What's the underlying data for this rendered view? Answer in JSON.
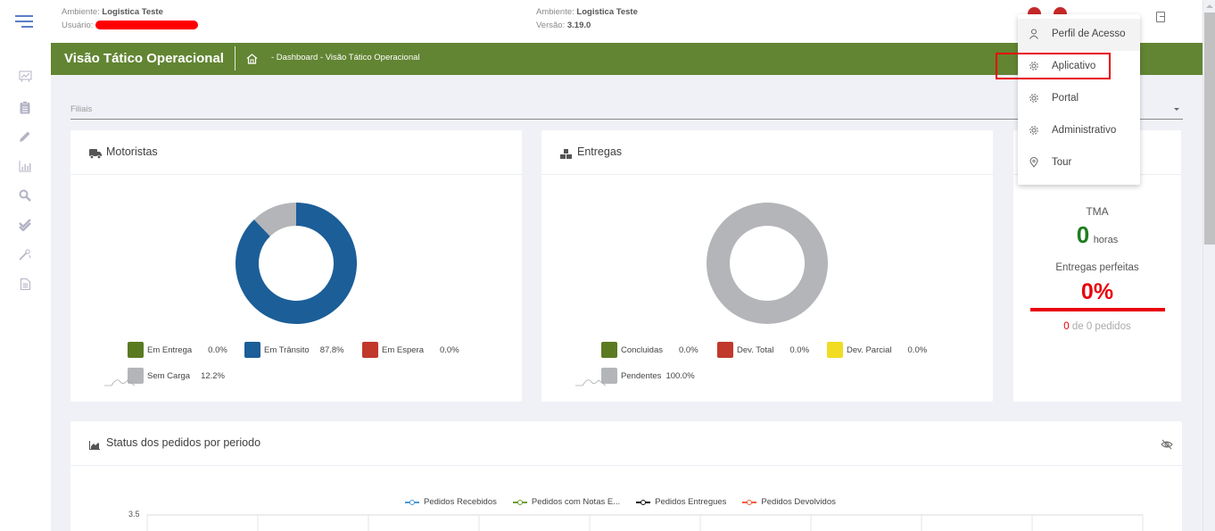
{
  "header": {
    "left": {
      "env_label": "Ambiente:",
      "env_value": "Logistica Teste",
      "user_label": "Usuário: r"
    },
    "mid": {
      "env_label": "Ambiente:",
      "env_value": "Logistica Teste",
      "version_label": "Versão:",
      "version_value": "3.19.0"
    }
  },
  "sidebar": {
    "items": [
      {
        "icon": "presentation-chart-icon"
      },
      {
        "icon": "clipboard-icon"
      },
      {
        "icon": "pencil-icon"
      },
      {
        "icon": "bar-chart-icon"
      },
      {
        "icon": "search-icon"
      },
      {
        "icon": "double-check-icon"
      },
      {
        "icon": "magic-wand-icon"
      },
      {
        "icon": "document-icon"
      }
    ]
  },
  "titlebar": {
    "title": "Visão Tático Operacional",
    "breadcrumb": " - Dashboard - Visão Tático Operacional"
  },
  "filter": {
    "label": "Filiais"
  },
  "motoristas": {
    "title": "Motoristas",
    "chart_data": {
      "type": "pie",
      "categories": [
        "Em Entrega",
        "Em Trânsito",
        "Em Espera",
        "Sem Carga"
      ],
      "values": [
        0.0,
        87.8,
        0.0,
        12.2
      ],
      "labels": [
        "0.0%",
        "87.8%",
        "0.0%",
        "12.2%"
      ],
      "colors": [
        "#5a7a22",
        "#1b5e98",
        "#c0392b",
        "#b4b5b8"
      ]
    }
  },
  "entregas": {
    "title": "Entregas",
    "chart_data": {
      "type": "pie",
      "categories": [
        "Concluidas",
        "Dev. Total",
        "Dev. Parcial",
        "Pendentes"
      ],
      "values": [
        0.0,
        0.0,
        0.0,
        100.0
      ],
      "labels": [
        "0.0%",
        "0.0%",
        "0.0%",
        "100.0%"
      ],
      "colors": [
        "#5a7a22",
        "#c0392b",
        "#f0dc20",
        "#b4b5b8"
      ]
    }
  },
  "kpi": {
    "tma_label": "TMA",
    "tma_value": "0",
    "tma_unit": "horas",
    "perfect_label": "Entregas perfeitas",
    "perfect_value": "0%",
    "perfect_count": "0",
    "perfect_suffix": "de 0 pedidos",
    "colors": {
      "green": "#1e7d1e",
      "red": "#e8000b"
    }
  },
  "status_chart": {
    "title": "Status dos pedidos por periodo",
    "chart_data": {
      "type": "line",
      "ytick_top": "3.5",
      "series": [
        {
          "name": "Pedidos Recebidos",
          "color": "#4a9ad8"
        },
        {
          "name": "Pedidos com Notas E...",
          "color": "#6a9e3a"
        },
        {
          "name": "Pedidos Entregues",
          "color": "#111111"
        },
        {
          "name": "Pedidos Devolvidos",
          "color": "#f06040"
        }
      ],
      "column_count": 9
    }
  },
  "user_menu": {
    "items": [
      {
        "label": "Perfil de Acesso",
        "icon": "user-icon"
      },
      {
        "label": "Aplicativo",
        "icon": "gear-icon"
      },
      {
        "label": "Portal",
        "icon": "gear-icon"
      },
      {
        "label": "Administrativo",
        "icon": "gear-icon"
      },
      {
        "label": "Tour",
        "icon": "map-pin-icon"
      }
    ]
  }
}
